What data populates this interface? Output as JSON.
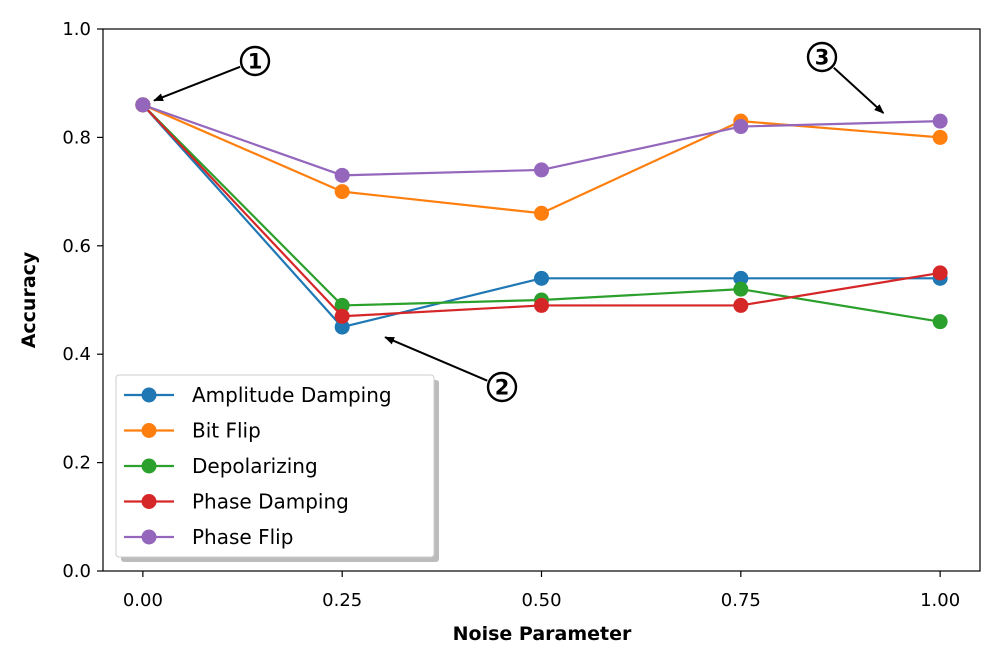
{
  "chart_data": {
    "type": "line",
    "title": "",
    "xlabel": "Noise Parameter",
    "ylabel": "Accuracy",
    "x": [
      0.0,
      0.25,
      0.5,
      0.75,
      1.0
    ],
    "xlim": [
      -0.05,
      1.05
    ],
    "ylim": [
      0.0,
      1.0
    ],
    "xticks": [
      0.0,
      0.25,
      0.5,
      0.75,
      1.0
    ],
    "xtick_labels": [
      "0.00",
      "0.25",
      "0.50",
      "0.75",
      "1.00"
    ],
    "yticks": [
      0.0,
      0.2,
      0.4,
      0.6,
      0.8,
      1.0
    ],
    "ytick_labels": [
      "0.0",
      "0.2",
      "0.4",
      "0.6",
      "0.8",
      "1.0"
    ],
    "grid": false,
    "legend_position": "lower-left",
    "series": [
      {
        "name": "Amplitude Damping",
        "color": "#1f77b4",
        "values": [
          0.86,
          0.45,
          0.54,
          0.54,
          0.54
        ]
      },
      {
        "name": "Bit Flip",
        "color": "#ff7f0e",
        "values": [
          0.86,
          0.7,
          0.66,
          0.83,
          0.8
        ]
      },
      {
        "name": "Depolarizing",
        "color": "#2ca02c",
        "values": [
          0.86,
          0.49,
          0.5,
          0.52,
          0.46
        ]
      },
      {
        "name": "Phase Damping",
        "color": "#d62728",
        "values": [
          0.86,
          0.47,
          0.49,
          0.49,
          0.55
        ]
      },
      {
        "name": "Phase Flip",
        "color": "#9467bd",
        "values": [
          0.86,
          0.73,
          0.74,
          0.82,
          0.83
        ]
      }
    ],
    "annotations": [
      {
        "label": "1",
        "text": "①",
        "points_to": {
          "x": 0.0,
          "y": 0.86
        }
      },
      {
        "label": "2",
        "text": "②",
        "points_to": {
          "x": 0.29,
          "y": 0.44
        }
      },
      {
        "label": "3",
        "text": "③",
        "points_to": {
          "x": 0.94,
          "y": 0.83
        }
      }
    ]
  }
}
